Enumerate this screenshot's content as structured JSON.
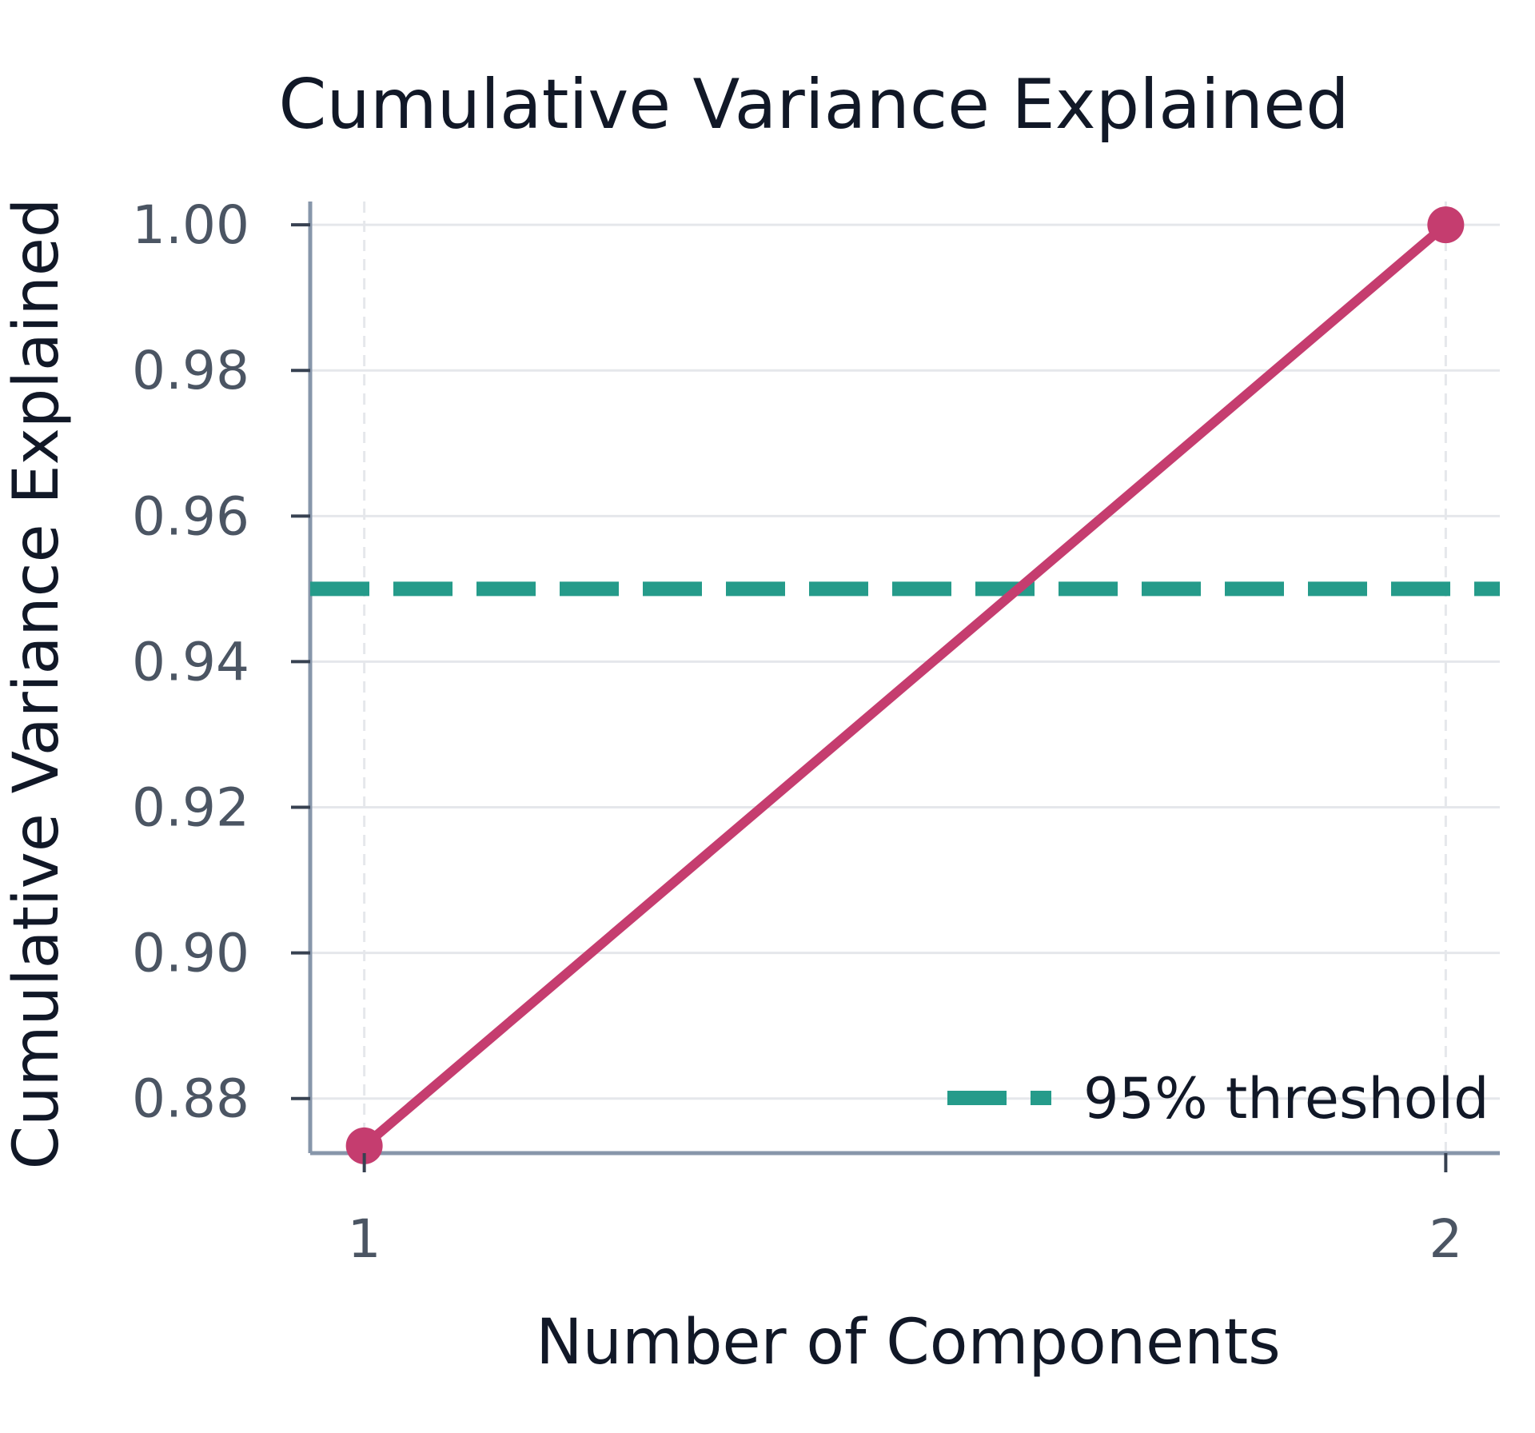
{
  "chart_data": {
    "type": "line",
    "title": "Cumulative Variance Explained",
    "xlabel": "Number of Components",
    "ylabel": "Cumulative Variance Explained",
    "x": [
      1,
      2
    ],
    "xticks": [
      "1",
      "2"
    ],
    "yticks": [
      "0.88",
      "0.90",
      "0.92",
      "0.94",
      "0.96",
      "0.98",
      "1.00"
    ],
    "xlim": [
      0.95,
      2.05
    ],
    "ylim": [
      0.8725,
      1.0032
    ],
    "grid": true,
    "legend_position": "bottom-right",
    "series": [
      {
        "values": [
          0.8735,
          1.0
        ],
        "color": "#c53d6f"
      }
    ],
    "threshold": {
      "name": "95% threshold",
      "value": 0.95,
      "color": "#259b8a"
    }
  }
}
